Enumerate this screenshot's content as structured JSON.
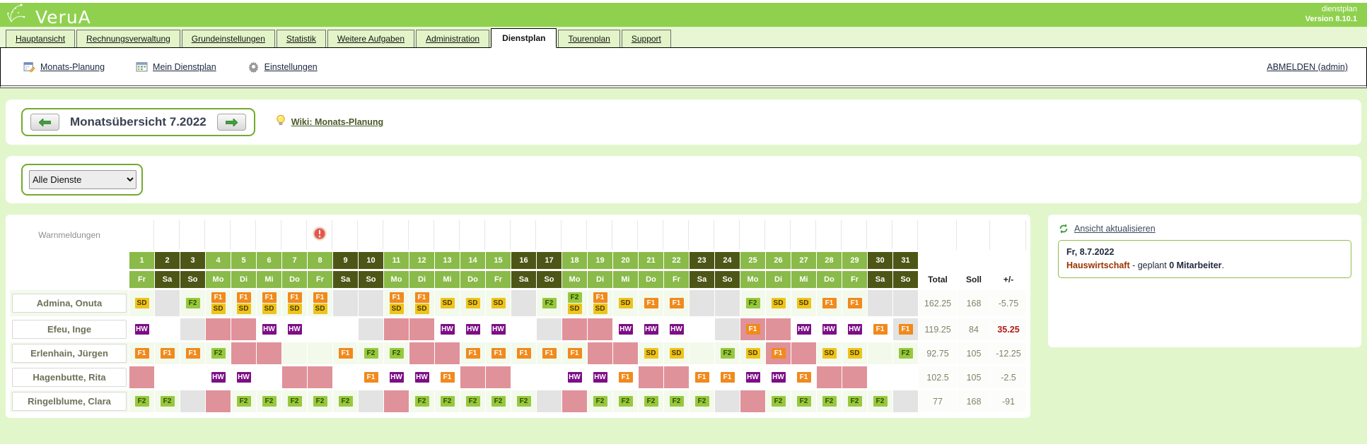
{
  "header": {
    "logo_text": "VeruA",
    "app_label": "dienstplan",
    "version": "Version 8.10.1"
  },
  "tabs": [
    {
      "label": "Hauptansicht",
      "active": false
    },
    {
      "label": "Rechnungsverwaltung",
      "active": false
    },
    {
      "label": "Grundeinstellungen",
      "active": false
    },
    {
      "label": "Statistik",
      "active": false
    },
    {
      "label": "Weitere Aufgaben",
      "active": false
    },
    {
      "label": "Administration",
      "active": false
    },
    {
      "label": "Dienstplan",
      "active": true
    },
    {
      "label": "Tourenplan",
      "active": false
    },
    {
      "label": "Support",
      "active": false
    }
  ],
  "toolbar": {
    "items": [
      {
        "label": "Monats-Planung",
        "icon": "calendar-edit-icon"
      },
      {
        "label": "Mein Dienstplan",
        "icon": "calendar-icon"
      },
      {
        "label": "Einstellungen",
        "icon": "gear-icon"
      }
    ],
    "logout_label": "ABMELDEN (admin)"
  },
  "month_nav": {
    "title": "Monatsübersicht 7.2022",
    "wiki_label": "Wiki: Monats-Planung"
  },
  "filter": {
    "selected_option": "Alle Dienste"
  },
  "colors": {
    "header_green": "#8fd14f",
    "page_bg": "#e2f6cb",
    "weekday_header": "#8aba49",
    "weekend_header": "#4d5616",
    "absence_pink": "#e0929a",
    "off_gray": "#e3e3e3",
    "alt_row": "#f3faec",
    "positive_red": "#b11b1b"
  },
  "roster": {
    "warnings_label": "Warnmeldungen",
    "warning_day": 8,
    "totals_headers": [
      "Total",
      "Soll",
      "+/-"
    ],
    "shift_colors": {
      "SD": {
        "bg": "#eec31b",
        "fg": "#4a3a00"
      },
      "F1": {
        "bg": "#f08a1d",
        "fg": "#ffffff"
      },
      "F2": {
        "bg": "#97c83e",
        "fg": "#2e4d00"
      },
      "HW": {
        "bg": "#7c0e86",
        "fg": "#ffffff"
      }
    },
    "days": [
      {
        "num": 1,
        "dow": "Fr",
        "weekend": false
      },
      {
        "num": 2,
        "dow": "Sa",
        "weekend": true
      },
      {
        "num": 3,
        "dow": "So",
        "weekend": true
      },
      {
        "num": 4,
        "dow": "Mo",
        "weekend": false
      },
      {
        "num": 5,
        "dow": "Di",
        "weekend": false
      },
      {
        "num": 6,
        "dow": "Mi",
        "weekend": false
      },
      {
        "num": 7,
        "dow": "Do",
        "weekend": false
      },
      {
        "num": 8,
        "dow": "Fr",
        "weekend": false
      },
      {
        "num": 9,
        "dow": "Sa",
        "weekend": true
      },
      {
        "num": 10,
        "dow": "So",
        "weekend": true
      },
      {
        "num": 11,
        "dow": "Mo",
        "weekend": false
      },
      {
        "num": 12,
        "dow": "Di",
        "weekend": false
      },
      {
        "num": 13,
        "dow": "Mi",
        "weekend": false
      },
      {
        "num": 14,
        "dow": "Do",
        "weekend": false
      },
      {
        "num": 15,
        "dow": "Fr",
        "weekend": false
      },
      {
        "num": 16,
        "dow": "Sa",
        "weekend": true
      },
      {
        "num": 17,
        "dow": "So",
        "weekend": true
      },
      {
        "num": 18,
        "dow": "Mo",
        "weekend": false
      },
      {
        "num": 19,
        "dow": "Di",
        "weekend": false
      },
      {
        "num": 20,
        "dow": "Mi",
        "weekend": false
      },
      {
        "num": 21,
        "dow": "Do",
        "weekend": false
      },
      {
        "num": 22,
        "dow": "Fr",
        "weekend": false
      },
      {
        "num": 23,
        "dow": "Sa",
        "weekend": true
      },
      {
        "num": 24,
        "dow": "So",
        "weekend": true
      },
      {
        "num": 25,
        "dow": "Mo",
        "weekend": false
      },
      {
        "num": 26,
        "dow": "Di",
        "weekend": false
      },
      {
        "num": 27,
        "dow": "Mi",
        "weekend": false
      },
      {
        "num": 28,
        "dow": "Do",
        "weekend": false
      },
      {
        "num": 29,
        "dow": "Fr",
        "weekend": false
      },
      {
        "num": 30,
        "dow": "Sa",
        "weekend": true
      },
      {
        "num": 31,
        "dow": "So",
        "weekend": true
      }
    ],
    "employees": [
      {
        "name": "Admina, Onuta",
        "total": "162.25",
        "soll": "168",
        "diff": "-5.75",
        "diff_color": "gray",
        "cells": [
          {
            "badges": [
              "SD"
            ]
          },
          {
            "bg": "gray"
          },
          {
            "badges": [
              "F2"
            ]
          },
          {
            "badges": [
              "F1",
              "SD"
            ]
          },
          {
            "badges": [
              "F1",
              "SD"
            ]
          },
          {
            "badges": [
              "F1",
              "SD"
            ]
          },
          {
            "badges": [
              "F1",
              "SD"
            ]
          },
          {
            "badges": [
              "F1",
              "SD"
            ]
          },
          {
            "bg": "gray"
          },
          {
            "bg": "gray"
          },
          {
            "badges": [
              "F1",
              "SD"
            ]
          },
          {
            "badges": [
              "F1",
              "SD"
            ]
          },
          {
            "badges": [
              "SD"
            ]
          },
          {
            "badges": [
              "SD"
            ]
          },
          {
            "badges": [
              "SD"
            ]
          },
          {
            "bg": "gray"
          },
          {
            "badges": [
              "F2"
            ]
          },
          {
            "badges": [
              "F2",
              "SD"
            ]
          },
          {
            "badges": [
              "F1",
              "SD"
            ]
          },
          {
            "badges": [
              "SD"
            ]
          },
          {
            "badges": [
              "F1"
            ]
          },
          {
            "badges": [
              "F1"
            ]
          },
          {
            "bg": "gray"
          },
          {
            "bg": "gray"
          },
          {
            "badges": [
              "F2"
            ]
          },
          {
            "badges": [
              "SD"
            ]
          },
          {
            "badges": [
              "SD"
            ]
          },
          {
            "badges": [
              "F1"
            ]
          },
          {
            "badges": [
              "F1"
            ]
          },
          {
            "bg": "gray"
          },
          {
            "bg": "gray"
          }
        ]
      },
      {
        "name": "Efeu, Inge",
        "total": "119.25",
        "soll": "84",
        "diff": "35.25",
        "diff_color": "red",
        "cells": [
          {
            "badges": [
              "HW"
            ]
          },
          {},
          {
            "bg": "gray"
          },
          {
            "bg": "pink"
          },
          {
            "bg": "pink"
          },
          {
            "badges": [
              "HW"
            ]
          },
          {
            "badges": [
              "HW"
            ]
          },
          {},
          {},
          {
            "bg": "gray"
          },
          {
            "bg": "pink"
          },
          {
            "bg": "pink"
          },
          {
            "badges": [
              "HW"
            ]
          },
          {
            "badges": [
              "HW"
            ]
          },
          {
            "badges": [
              "HW"
            ]
          },
          {},
          {
            "bg": "gray"
          },
          {
            "bg": "pink"
          },
          {
            "bg": "pink"
          },
          {
            "badges": [
              "HW"
            ]
          },
          {
            "badges": [
              "HW"
            ]
          },
          {
            "badges": [
              "HW"
            ]
          },
          {},
          {
            "bg": "gray"
          },
          {
            "badges": [
              "F1"
            ],
            "bg": "pink"
          },
          {
            "bg": "pink"
          },
          {
            "badges": [
              "HW"
            ]
          },
          {
            "badges": [
              "HW"
            ]
          },
          {
            "badges": [
              "HW"
            ]
          },
          {
            "badges": [
              "F1"
            ]
          },
          {
            "badges": [
              "F1"
            ],
            "bg": "gray"
          }
        ]
      },
      {
        "name": "Erlenhain, Jürgen",
        "total": "92.75",
        "soll": "105",
        "diff": "-12.25",
        "diff_color": "gray",
        "cells": [
          {
            "badges": [
              "F1"
            ]
          },
          {
            "badges": [
              "F1"
            ]
          },
          {
            "badges": [
              "F1"
            ]
          },
          {
            "badges": [
              "F2"
            ]
          },
          {
            "bg": "pink"
          },
          {
            "bg": "pink"
          },
          {},
          {},
          {
            "badges": [
              "F1"
            ]
          },
          {
            "badges": [
              "F2"
            ]
          },
          {
            "badges": [
              "F2"
            ]
          },
          {
            "bg": "pink"
          },
          {
            "bg": "pink"
          },
          {
            "badges": [
              "F1"
            ]
          },
          {
            "badges": [
              "F1"
            ]
          },
          {
            "badges": [
              "F1"
            ]
          },
          {
            "badges": [
              "F1"
            ]
          },
          {
            "badges": [
              "F1"
            ]
          },
          {
            "bg": "pink"
          },
          {
            "bg": "pink"
          },
          {
            "badges": [
              "SD"
            ]
          },
          {
            "badges": [
              "SD"
            ]
          },
          {},
          {
            "badges": [
              "F2"
            ]
          },
          {
            "badges": [
              "SD"
            ]
          },
          {
            "badges": [
              "F1"
            ],
            "bg": "pink"
          },
          {
            "bg": "pink"
          },
          {
            "badges": [
              "SD"
            ]
          },
          {
            "badges": [
              "SD"
            ]
          },
          {},
          {
            "badges": [
              "F2"
            ]
          }
        ]
      },
      {
        "name": "Hagenbutte, Rita",
        "total": "102.5",
        "soll": "105",
        "diff": "-2.5",
        "diff_color": "gray",
        "cells": [
          {
            "bg": "pink"
          },
          {},
          {},
          {
            "badges": [
              "HW"
            ]
          },
          {
            "badges": [
              "HW"
            ]
          },
          {},
          {
            "bg": "pink"
          },
          {
            "bg": "pink"
          },
          {},
          {
            "badges": [
              "F1"
            ]
          },
          {
            "badges": [
              "HW"
            ]
          },
          {
            "badges": [
              "HW"
            ]
          },
          {
            "badges": [
              "F1"
            ]
          },
          {
            "bg": "pink"
          },
          {
            "bg": "pink"
          },
          {},
          {},
          {
            "badges": [
              "HW"
            ]
          },
          {
            "badges": [
              "HW"
            ]
          },
          {
            "badges": [
              "F1"
            ]
          },
          {
            "bg": "pink"
          },
          {
            "bg": "pink"
          },
          {
            "badges": [
              "F1"
            ]
          },
          {
            "badges": [
              "F1"
            ]
          },
          {
            "badges": [
              "HW"
            ]
          },
          {
            "badges": [
              "HW"
            ]
          },
          {
            "badges": [
              "F1"
            ]
          },
          {
            "bg": "pink"
          },
          {
            "bg": "pink"
          },
          {},
          {}
        ]
      },
      {
        "name": "Ringelblume, Clara",
        "total": "77",
        "soll": "168",
        "diff": "-91",
        "diff_color": "gray",
        "cells": [
          {
            "badges": [
              "F2"
            ]
          },
          {
            "badges": [
              "F2"
            ]
          },
          {
            "bg": "gray"
          },
          {
            "bg": "pink"
          },
          {
            "badges": [
              "F2"
            ]
          },
          {
            "badges": [
              "F2"
            ]
          },
          {
            "badges": [
              "F2"
            ]
          },
          {
            "badges": [
              "F2"
            ]
          },
          {
            "badges": [
              "F2"
            ]
          },
          {
            "bg": "gray"
          },
          {
            "bg": "pink"
          },
          {
            "badges": [
              "F2"
            ]
          },
          {
            "badges": [
              "F2"
            ]
          },
          {
            "badges": [
              "F2"
            ]
          },
          {
            "badges": [
              "F2"
            ]
          },
          {
            "badges": [
              "F2"
            ]
          },
          {
            "bg": "gray"
          },
          {
            "bg": "pink"
          },
          {
            "badges": [
              "F2"
            ]
          },
          {
            "badges": [
              "F2"
            ]
          },
          {
            "badges": [
              "F2"
            ]
          },
          {
            "badges": [
              "F2"
            ]
          },
          {
            "badges": [
              "F2"
            ]
          },
          {
            "bg": "gray"
          },
          {
            "bg": "pink"
          },
          {
            "badges": [
              "F2"
            ]
          },
          {
            "badges": [
              "F2"
            ]
          },
          {
            "badges": [
              "F2"
            ]
          },
          {
            "badges": [
              "F2"
            ]
          },
          {
            "badges": [
              "F2"
            ]
          },
          {
            "bg": "gray"
          }
        ]
      }
    ]
  },
  "side_panel": {
    "refresh_label": "Ansicht aktualisieren",
    "info": {
      "date": "Fr, 8.7.2022",
      "category": "Hauswirtschaft",
      "middle": " - geplant ",
      "count": "0 Mitarbeiter",
      "suffix": "."
    }
  }
}
